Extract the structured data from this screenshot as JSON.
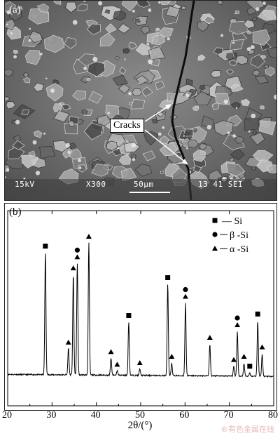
{
  "panel_a": {
    "label": "(a)",
    "annotation": "Cracks",
    "info_bar": {
      "voltage": "15kV",
      "magnification": "X300",
      "scale_bar": "50μm",
      "code": "13 41 SEI"
    }
  },
  "panel_b": {
    "label": "(b)",
    "legend": [
      {
        "marker": "square",
        "text": "— Si"
      },
      {
        "marker": "circle",
        "text": "β -Si"
      },
      {
        "marker": "triangle",
        "text": "α -Si"
      }
    ]
  },
  "chart_data": {
    "type": "line",
    "xlabel": "2θ/(°)",
    "ylabel": "",
    "xlim": [
      20,
      80
    ],
    "x_ticks": [
      20,
      30,
      40,
      50,
      60,
      70,
      80
    ],
    "series_name": "",
    "peaks": [
      {
        "x": 28.5,
        "intensity": 0.78,
        "phase": "Si"
      },
      {
        "x": 33.7,
        "intensity": 0.17,
        "phase": "alpha"
      },
      {
        "x": 34.8,
        "intensity": 0.64,
        "phase": "alpha"
      },
      {
        "x": 35.7,
        "intensity": 0.71,
        "phase": "beta+alpha"
      },
      {
        "x": 38.3,
        "intensity": 0.84,
        "phase": "alpha"
      },
      {
        "x": 43.3,
        "intensity": 0.11,
        "phase": "alpha"
      },
      {
        "x": 44.7,
        "intensity": 0.03,
        "phase": "alpha"
      },
      {
        "x": 47.3,
        "intensity": 0.34,
        "phase": "Si"
      },
      {
        "x": 49.8,
        "intensity": 0.04,
        "phase": "alpha"
      },
      {
        "x": 56.1,
        "intensity": 0.58,
        "phase": "Si"
      },
      {
        "x": 57.0,
        "intensity": 0.08,
        "phase": "alpha"
      },
      {
        "x": 60.1,
        "intensity": 0.46,
        "phase": "beta+alpha"
      },
      {
        "x": 65.6,
        "intensity": 0.2,
        "phase": "alpha"
      },
      {
        "x": 71.0,
        "intensity": 0.06,
        "phase": "alpha"
      },
      {
        "x": 71.8,
        "intensity": 0.28,
        "phase": "beta+alpha"
      },
      {
        "x": 73.3,
        "intensity": 0.08,
        "phase": "alpha"
      },
      {
        "x": 74.6,
        "intensity": 0.02,
        "phase": "Si"
      },
      {
        "x": 76.4,
        "intensity": 0.35,
        "phase": "Si"
      },
      {
        "x": 77.4,
        "intensity": 0.14,
        "phase": "alpha"
      }
    ]
  },
  "watermark": "®有色金属在线"
}
